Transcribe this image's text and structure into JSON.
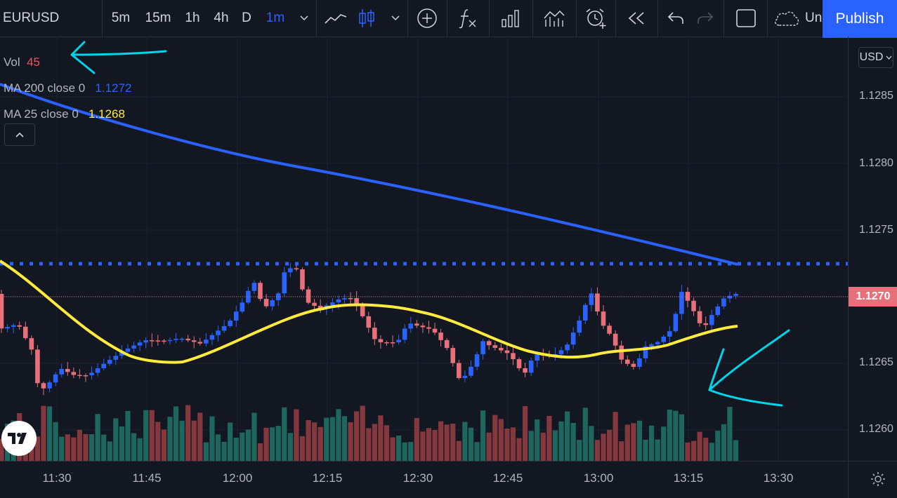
{
  "toolbar": {
    "symbol": "EURUSD",
    "intervals": [
      {
        "label": "5m",
        "active": false
      },
      {
        "label": "15m",
        "active": false
      },
      {
        "label": "1h",
        "active": false
      },
      {
        "label": "4h",
        "active": false
      },
      {
        "label": "D",
        "active": false
      },
      {
        "label": "1m",
        "active": true
      }
    ],
    "tools": [
      "line-chart-icon",
      "candlestick-icon",
      "chevron-down-icon",
      "add-icon",
      "fx-icon",
      "bar-chart-icon",
      "compare-icon",
      "alarm-icon",
      "replay-icon",
      "undo-icon",
      "redo-icon",
      "rectangle-icon",
      "cloud-icon"
    ],
    "unnamed_label": "Un",
    "publish_label": "Publish"
  },
  "legend": {
    "vol": {
      "name": "Vol",
      "value": "45",
      "color": "#f7525f"
    },
    "ma200": {
      "name": "MA 200 close 0",
      "value": "1.1272",
      "color": "#2962ff"
    },
    "ma25": {
      "name": "MA 25 close 0",
      "value": "1.1268",
      "color": "#ffeb3b"
    }
  },
  "price_axis": {
    "currency": "USD",
    "ticks": [
      "1.1285",
      "1.1280",
      "1.1275",
      "1.1270",
      "1.1265",
      "1.1260"
    ],
    "last_price": "1.1270"
  },
  "time_axis": {
    "ticks": [
      "11:30",
      "11:45",
      "12:00",
      "12:15",
      "12:30",
      "12:45",
      "13:00",
      "13:15",
      "13:30"
    ]
  },
  "chart_data": {
    "type": "candlestick",
    "symbol": "EURUSD",
    "interval": "1m",
    "y_range": [
      1.1258,
      1.1289
    ],
    "horizontal_line": 1.12723,
    "colors": {
      "up": "#2962ff",
      "down": "#e8707a",
      "ma200": "#2962ff",
      "ma25": "#ffeb3b",
      "vol_up": "#26a69a",
      "vol_down": "#ef5350"
    }
  }
}
